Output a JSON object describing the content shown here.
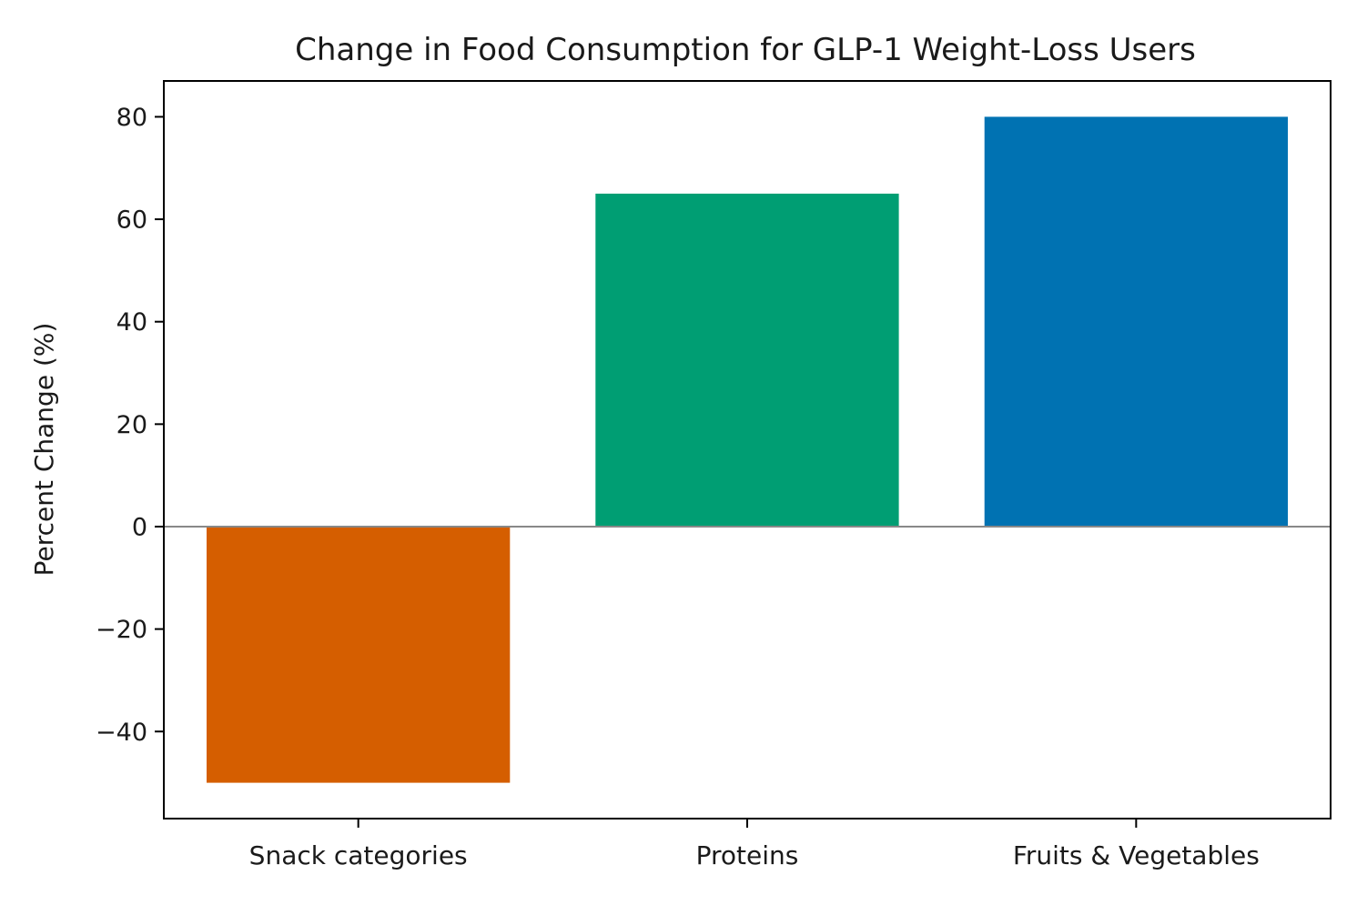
{
  "chart_data": {
    "type": "bar",
    "title": "Change in Food Consumption for GLP-1 Weight-Loss Users",
    "xlabel": "",
    "ylabel": "Percent Change (%)",
    "categories": [
      "Snack categories",
      "Proteins",
      "Fruits & Vegetables"
    ],
    "values": [
      -50,
      65,
      80
    ],
    "colors": [
      "#d55e00",
      "#009e73",
      "#0072b2"
    ],
    "ylim": [
      -57,
      87
    ],
    "yticks": [
      -40,
      -20,
      0,
      20,
      40,
      60,
      80
    ],
    "ytick_labels": [
      "−40",
      "−20",
      "0",
      "20",
      "40",
      "60",
      "80"
    ],
    "zero_line": true,
    "zero_line_color": "#888888",
    "grid": false,
    "legend": "none"
  }
}
